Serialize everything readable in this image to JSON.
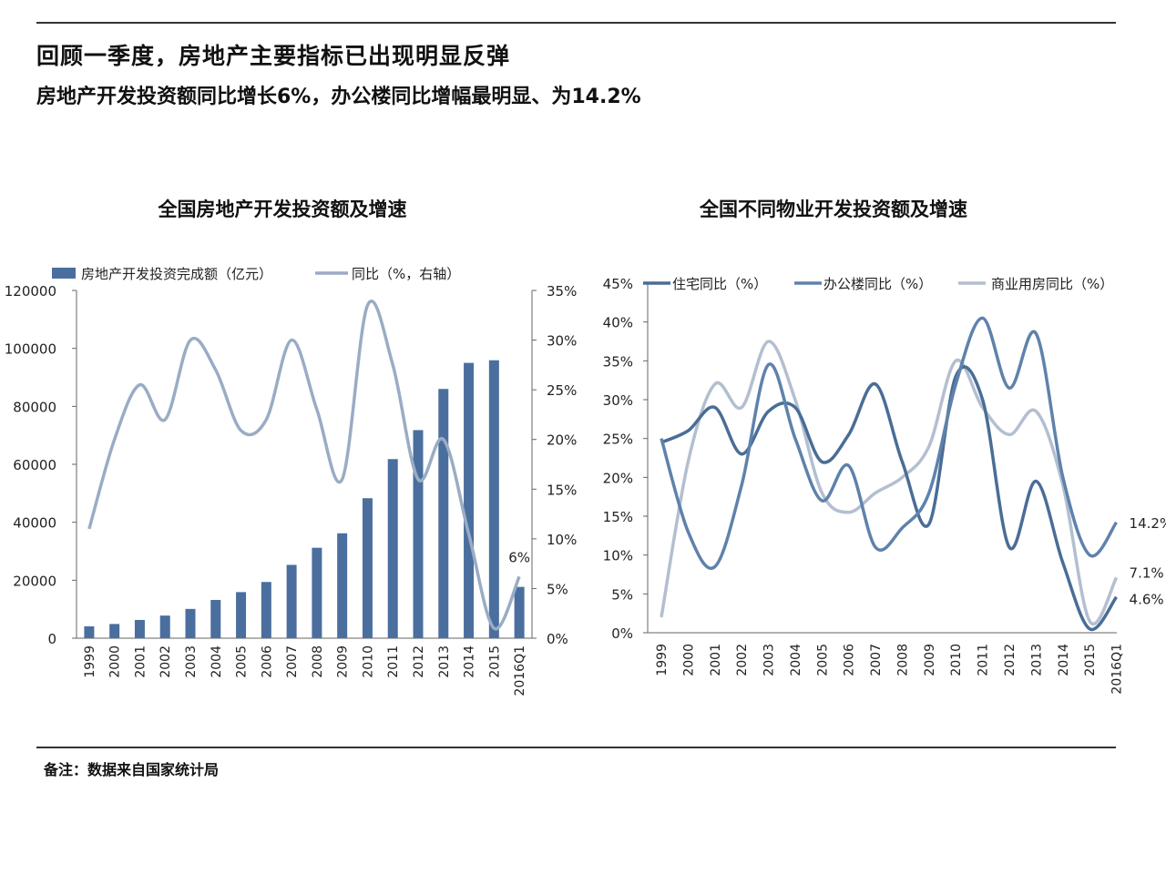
{
  "header": {
    "title": "回顾一季度，房地产主要指标已出现明显反弹",
    "subtitle": "房地产开发投资额同比增长6%，办公楼同比增幅最明显、为14.2%"
  },
  "footnote": "备注：数据来自国家统计局",
  "colors": {
    "bar": "#4a6f9e",
    "line_light": "#9aacc4",
    "residential": "#4a6d96",
    "office": "#5e82ab",
    "commercial": "#b3bfd0"
  },
  "chart_data": [
    {
      "type": "bar",
      "title": "全国房地产开发投资额及增速",
      "categories": [
        "1999",
        "2000",
        "2001",
        "2002",
        "2003",
        "2004",
        "2005",
        "2006",
        "2007",
        "2008",
        "2009",
        "2010",
        "2011",
        "2012",
        "2013",
        "2014",
        "2015",
        "2016Q1"
      ],
      "series": [
        {
          "name": "房地产开发投资完成额（亿元）",
          "kind": "bar",
          "axis": "left",
          "values": [
            4100,
            4900,
            6300,
            7800,
            10100,
            13200,
            15900,
            19400,
            25300,
            31200,
            36200,
            48300,
            61800,
            71800,
            86000,
            95000,
            95900,
            17700
          ]
        },
        {
          "name": "同比（%，右轴）",
          "kind": "line",
          "axis": "right",
          "values": [
            11,
            20,
            25.5,
            22,
            30,
            27,
            20.9,
            22,
            30,
            23,
            16,
            33.5,
            27.5,
            16,
            20,
            10.5,
            1,
            6.2
          ]
        }
      ],
      "ylim_left": [
        0,
        120000
      ],
      "yticks_left": [
        "0",
        "20000",
        "40000",
        "60000",
        "80000",
        "100000",
        "120000"
      ],
      "ylim_right": [
        0,
        35
      ],
      "yticks_right": [
        "0%",
        "5%",
        "10%",
        "15%",
        "20%",
        "25%",
        "30%",
        "35%"
      ],
      "annotations": [
        {
          "label": "6%",
          "category": "2016Q1"
        }
      ],
      "legend": "top"
    },
    {
      "type": "line",
      "title": "全国不同物业开发投资额及增速",
      "categories": [
        "1999",
        "2000",
        "2001",
        "2002",
        "2003",
        "2004",
        "2005",
        "2006",
        "2007",
        "2008",
        "2009",
        "2010",
        "2011",
        "2012",
        "2013",
        "2014",
        "2015",
        "2016Q1"
      ],
      "series": [
        {
          "name": "住宅同比（%）",
          "values": [
            24.5,
            26,
            29,
            23,
            28.5,
            29,
            22,
            25.5,
            32,
            22,
            14,
            33,
            30,
            11,
            19.5,
            9,
            0.5,
            4.6
          ]
        },
        {
          "name": "办公楼同比（%）",
          "values": [
            25,
            13,
            8.5,
            19,
            34.5,
            25,
            17,
            21.5,
            11,
            13.5,
            18,
            32,
            40.5,
            31.5,
            38.5,
            20,
            10,
            14.2
          ]
        },
        {
          "name": "商业用房同比（%）",
          "values": [
            2,
            22,
            32,
            29,
            37.5,
            30,
            18,
            15.5,
            18,
            20,
            24,
            35,
            29,
            25.5,
            28.5,
            19,
            1.5,
            7.1
          ]
        }
      ],
      "ylim": [
        0,
        45
      ],
      "yticks": [
        "0%",
        "5%",
        "10%",
        "15%",
        "20%",
        "25%",
        "30%",
        "35%",
        "40%",
        "45%"
      ],
      "end_labels": [
        "4.6%",
        "14.2%",
        "7.1%"
      ],
      "legend": "top"
    }
  ]
}
